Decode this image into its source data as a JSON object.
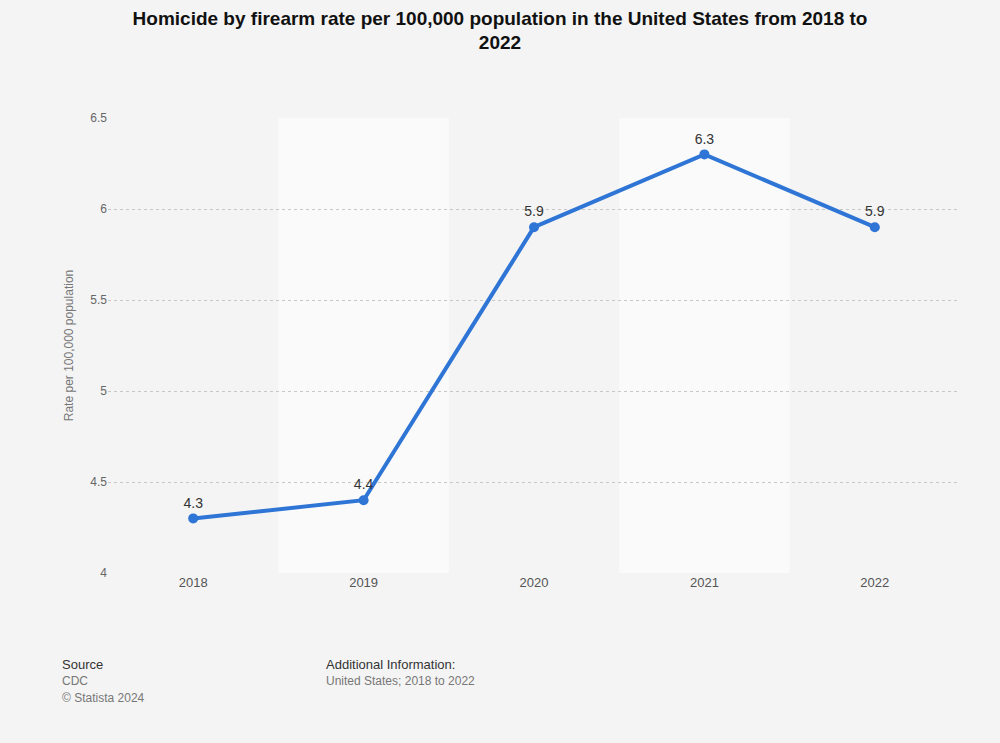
{
  "chart_data": {
    "type": "line",
    "title": "Homicide by firearm rate per 100,000 population in the United States from 2018 to 2022",
    "y_label": "Rate per 100,000 population",
    "categories": [
      "2018",
      "2019",
      "2020",
      "2021",
      "2022"
    ],
    "values": [
      4.3,
      4.4,
      5.9,
      6.3,
      5.9
    ],
    "color": "#2e75d6",
    "marker": "circle",
    "ylim": [
      4,
      6.5
    ],
    "yticks": [
      4,
      4.5,
      5,
      5.5,
      6,
      6.5
    ],
    "grid": true,
    "data_labels": true,
    "notes": [
      "Source",
      "CDC",
      "© Statista 2024",
      "Additional Information:",
      "United States; 2018 to 2022"
    ]
  }
}
